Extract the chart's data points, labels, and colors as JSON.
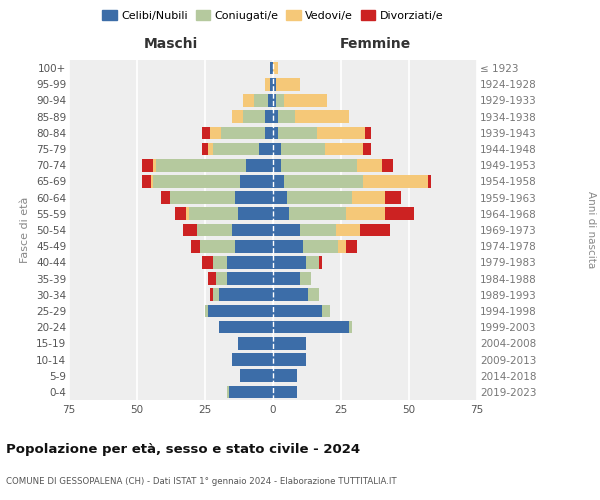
{
  "age_groups": [
    "0-4",
    "5-9",
    "10-14",
    "15-19",
    "20-24",
    "25-29",
    "30-34",
    "35-39",
    "40-44",
    "45-49",
    "50-54",
    "55-59",
    "60-64",
    "65-69",
    "70-74",
    "75-79",
    "80-84",
    "85-89",
    "90-94",
    "95-99",
    "100+"
  ],
  "birth_years": [
    "2019-2023",
    "2014-2018",
    "2009-2013",
    "2004-2008",
    "1999-2003",
    "1994-1998",
    "1989-1993",
    "1984-1988",
    "1979-1983",
    "1974-1978",
    "1969-1973",
    "1964-1968",
    "1959-1963",
    "1954-1958",
    "1949-1953",
    "1944-1948",
    "1939-1943",
    "1934-1938",
    "1929-1933",
    "1924-1928",
    "≤ 1923"
  ],
  "colors": {
    "celibi": "#3c6da8",
    "coniugati": "#b5c99e",
    "vedovi": "#f5c878",
    "divorziati": "#cc2222"
  },
  "maschi": {
    "celibi": [
      16,
      12,
      15,
      13,
      20,
      24,
      20,
      17,
      17,
      14,
      15,
      13,
      14,
      12,
      10,
      5,
      3,
      3,
      2,
      1,
      1
    ],
    "coniugati": [
      1,
      0,
      0,
      0,
      0,
      1,
      2,
      4,
      5,
      13,
      13,
      18,
      24,
      32,
      33,
      17,
      16,
      8,
      5,
      0,
      0
    ],
    "vedovi": [
      0,
      0,
      0,
      0,
      0,
      0,
      0,
      0,
      0,
      0,
      0,
      1,
      0,
      1,
      1,
      2,
      4,
      4,
      4,
      2,
      0
    ],
    "divorziati": [
      0,
      0,
      0,
      0,
      0,
      0,
      1,
      3,
      4,
      3,
      5,
      4,
      3,
      3,
      4,
      2,
      3,
      0,
      0,
      0,
      0
    ]
  },
  "femmine": {
    "celibi": [
      9,
      9,
      12,
      12,
      28,
      18,
      13,
      10,
      12,
      11,
      10,
      6,
      5,
      4,
      3,
      3,
      2,
      2,
      1,
      1,
      0
    ],
    "coniugati": [
      0,
      0,
      0,
      0,
      1,
      3,
      4,
      4,
      5,
      13,
      13,
      21,
      24,
      29,
      28,
      16,
      14,
      6,
      3,
      0,
      0
    ],
    "vedovi": [
      0,
      0,
      0,
      0,
      0,
      0,
      0,
      0,
      0,
      3,
      9,
      14,
      12,
      24,
      9,
      14,
      18,
      20,
      16,
      9,
      2
    ],
    "divorziati": [
      0,
      0,
      0,
      0,
      0,
      0,
      0,
      0,
      1,
      4,
      11,
      11,
      6,
      1,
      4,
      3,
      2,
      0,
      0,
      0,
      0
    ]
  },
  "xlim": 75,
  "title": "Popolazione per età, sesso e stato civile - 2024",
  "subtitle": "COMUNE DI GESSOPALENA (CH) - Dati ISTAT 1° gennaio 2024 - Elaborazione TUTTITALIA.IT",
  "ylabel_left": "Fasce di età",
  "ylabel_right": "Anni di nascita",
  "xlabel_left": "Maschi",
  "xlabel_right": "Femmine"
}
